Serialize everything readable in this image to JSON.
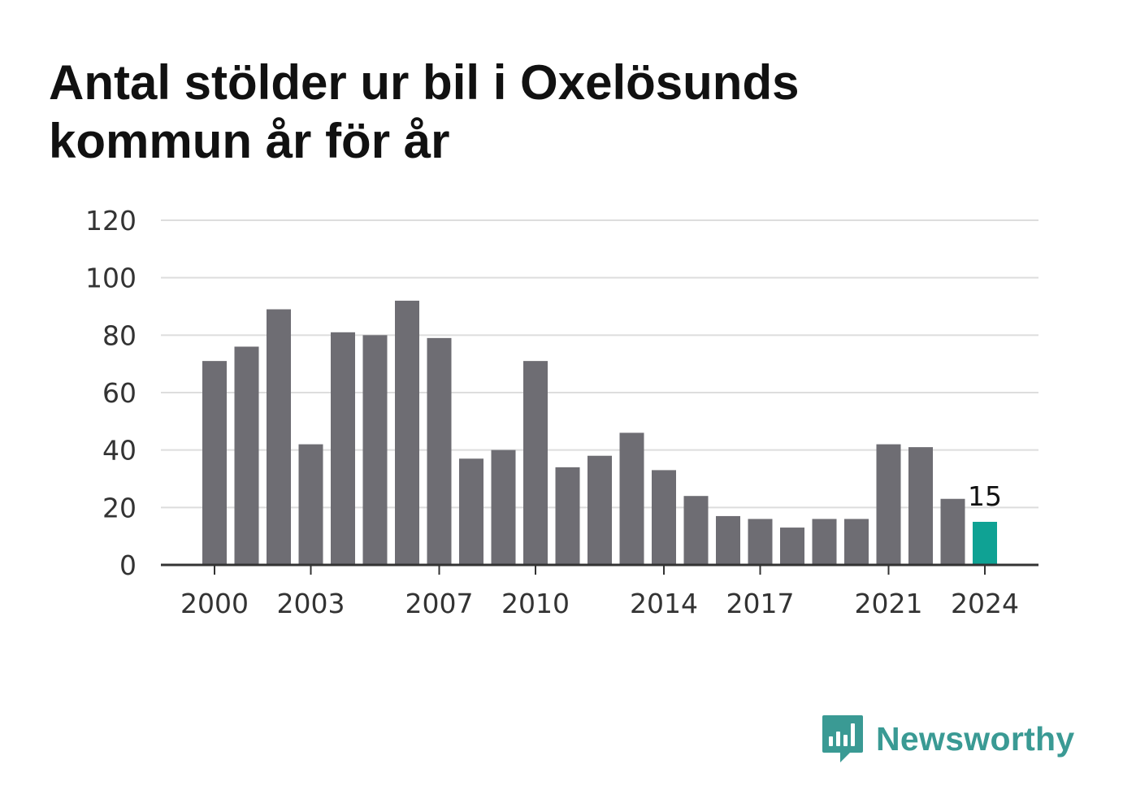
{
  "title": "Antal stölder ur bil i Oxelösunds kommun år för år",
  "brand": {
    "name": "Newsworthy",
    "logo_icon": "bar-chart-speech-bubble-icon",
    "color": "#3a9a94"
  },
  "colors": {
    "bar": "#6e6d73",
    "highlight": "#0fa294",
    "grid": "#dddddd",
    "axis": "#333333"
  },
  "chart_data": {
    "type": "bar",
    "title": "Antal stölder ur bil i Oxelösunds kommun år för år",
    "xlabel": "",
    "ylabel": "",
    "categories": [
      "2000",
      "2001",
      "2002",
      "2003",
      "2004",
      "2005",
      "2006",
      "2007",
      "2008",
      "2009",
      "2010",
      "2011",
      "2012",
      "2013",
      "2014",
      "2015",
      "2016",
      "2017",
      "2018",
      "2019",
      "2020",
      "2021",
      "2022",
      "2023",
      "2024"
    ],
    "values": [
      71,
      76,
      89,
      42,
      81,
      80,
      92,
      79,
      37,
      40,
      71,
      34,
      38,
      46,
      33,
      24,
      17,
      16,
      13,
      16,
      16,
      42,
      41,
      23,
      15
    ],
    "ylim": [
      0,
      120
    ],
    "yticks": [
      0,
      20,
      40,
      60,
      80,
      100,
      120
    ],
    "xtick_labels": [
      "2000",
      "2003",
      "2007",
      "2010",
      "2014",
      "2017",
      "2021",
      "2024"
    ],
    "highlight": {
      "category": "2024",
      "label": "15"
    },
    "grid": true,
    "legend": "none"
  }
}
